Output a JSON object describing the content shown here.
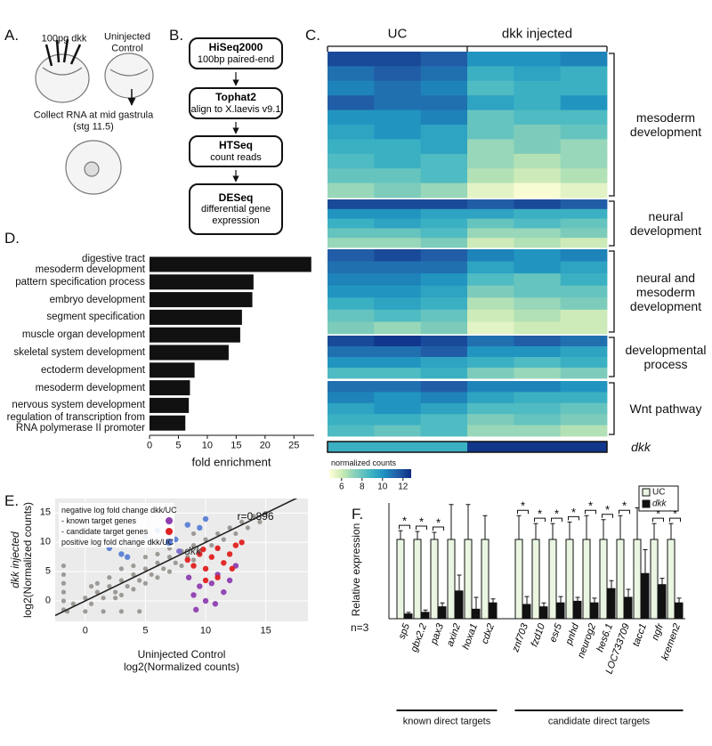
{
  "panels": {
    "A": "A.",
    "B": "B.",
    "C": "C.",
    "D": "D.",
    "E": "E.",
    "F": "F."
  },
  "panel_a": {
    "injected": "100pg dkk",
    "control": "Uninjected\nControl",
    "step": "Collect RNA at mid gastrula\n(stg 11.5)"
  },
  "panel_b": {
    "steps": [
      {
        "title": "HiSeq2000",
        "text": "100bp paired-end"
      },
      {
        "title": "Tophat2",
        "text": "align to X.laevis v9.1"
      },
      {
        "title": "HTSeq",
        "text": "count reads"
      },
      {
        "title": "DESeq",
        "text": "differential gene\nexpression"
      }
    ]
  },
  "chart_data": [
    {
      "type": "heatmap",
      "column_groups": [
        "UC",
        "dkk injected"
      ],
      "columns_per_group": 3,
      "row_groups": [
        {
          "label": "mesoderm\ndevelopment",
          "rows": [
            [
              12,
              12,
              11.5,
              10,
              10,
              10.5
            ],
            [
              11,
              11.5,
              11,
              9,
              9.5,
              9
            ],
            [
              10.5,
              11,
              10.5,
              8.5,
              9,
              9
            ],
            [
              11.5,
              11,
              11,
              9.5,
              9,
              10
            ],
            [
              10,
              10,
              10.5,
              8,
              8.5,
              8.5
            ],
            [
              9.5,
              10,
              9.5,
              8,
              7.5,
              8
            ],
            [
              9,
              9,
              9.5,
              7,
              7.5,
              7
            ],
            [
              8.5,
              9,
              8.5,
              7,
              6.5,
              7
            ],
            [
              8,
              8,
              8.5,
              6.5,
              6,
              6.5
            ],
            [
              7,
              7.5,
              7,
              5.5,
              5,
              5.5
            ]
          ]
        },
        {
          "label": "neural\ndevelopment",
          "rows": [
            [
              12,
              12,
              12,
              11.5,
              12,
              11.5
            ],
            [
              10,
              10,
              9.5,
              9.5,
              9,
              9
            ],
            [
              9,
              9.5,
              9,
              8,
              8.5,
              8
            ],
            [
              8,
              8,
              8.5,
              7,
              7,
              7.5
            ],
            [
              7,
              7,
              7.5,
              6,
              6.5,
              6
            ]
          ]
        },
        {
          "label": "neural and\nmesoderm\ndevelopment",
          "rows": [
            [
              11.5,
              12,
              11.5,
              10.5,
              10,
              10.5
            ],
            [
              11,
              11,
              11,
              9.5,
              10,
              9.5
            ],
            [
              10.5,
              10.5,
              10,
              8.5,
              8,
              9
            ],
            [
              10,
              10,
              9.5,
              7.5,
              8,
              8
            ],
            [
              9,
              9.5,
              9,
              6.5,
              7,
              7.5
            ],
            [
              8,
              8.5,
              8,
              6,
              6.5,
              6
            ],
            [
              7.5,
              7,
              7.5,
              5.5,
              6,
              6
            ]
          ]
        },
        {
          "label": "developmental\nprocess",
          "rows": [
            [
              12,
              12.5,
              12,
              11,
              11.5,
              11
            ],
            [
              11,
              11,
              11.5,
              10,
              10,
              9.5
            ],
            [
              10,
              10,
              9.5,
              9,
              8.5,
              9
            ],
            [
              8.5,
              8.5,
              9,
              7.5,
              7,
              7.5
            ]
          ]
        },
        {
          "label": "Wnt pathway",
          "rows": [
            [
              11,
              11,
              11.5,
              10.5,
              10.5,
              10
            ],
            [
              10.5,
              10,
              10.5,
              9.5,
              9,
              9
            ],
            [
              9.5,
              10,
              9.5,
              8.5,
              8.5,
              8
            ],
            [
              9,
              9,
              8.5,
              7.5,
              8,
              7.5
            ],
            [
              8.5,
              8,
              8.5,
              7,
              7,
              6.5
            ]
          ]
        },
        {
          "label": "dkk",
          "rows": [
            [
              9,
              9,
              9,
              12.5,
              12.5,
              12.5
            ]
          ]
        }
      ],
      "colorbar_title": "normalized counts",
      "zlim": [
        4.8,
        12.8
      ],
      "zticks": [
        6,
        8,
        10,
        12
      ],
      "colors": [
        "#ffffd9",
        "#c7e9b4",
        "#7fcdbb",
        "#41b6c4",
        "#1d91c0",
        "#225ea8",
        "#0c2c84"
      ]
    },
    {
      "type": "hbar",
      "categories": [
        "digestive tract\nmesoderm development",
        "pattern specification process",
        "embryo development",
        "segment specification",
        "muscle organ development",
        "skeletal system development",
        "ectoderm development",
        "mesoderm development",
        "nervous system development",
        "regulation of transcription from\nRNA polymerase II promoter"
      ],
      "values": [
        28,
        18,
        17.8,
        16,
        15.7,
        13.7,
        7.8,
        7,
        6.8,
        6.2
      ],
      "color": "#111111",
      "xlim": [
        0,
        28.5
      ],
      "xticks": [
        0,
        5,
        10,
        15,
        20,
        25
      ],
      "xlabel": "fold enrichment"
    },
    {
      "type": "scatter",
      "xlim": [
        -2.5,
        18.5
      ],
      "ylim": [
        -3.5,
        17.5
      ],
      "xticks": [
        0,
        5,
        10,
        15
      ],
      "yticks": [
        0,
        5,
        10,
        15
      ],
      "xlabel": [
        "Uninjected Control",
        "log2(Normalized counts)"
      ],
      "ylabel": [
        "dkk injected",
        "log2(Normalized counts)"
      ],
      "grid": true,
      "background": "#ebebeb",
      "annotation": "r=0.896",
      "trendline": {
        "slope": 1,
        "intercept": 0
      },
      "legend_title": "negative log fold change dkk/UC",
      "series": [
        {
          "color": "#8a8580",
          "legend": false,
          "x": [
            -1.8,
            -1.8,
            -1.8,
            -1.8,
            -1.8,
            -1.8,
            -1.5,
            0,
            1.5,
            3,
            4.5,
            -1,
            0,
            0.5,
            1,
            1.5,
            2,
            2.5,
            3,
            3.5,
            4,
            4.5,
            5,
            5.5,
            6,
            6.5,
            7,
            7.5,
            8,
            8.5,
            9,
            9.5,
            10,
            10.5,
            11,
            11.5,
            12,
            12.5,
            13,
            13.5,
            14,
            14.5,
            15,
            1,
            2,
            3,
            4,
            5,
            6,
            3,
            4,
            5,
            6,
            7,
            8,
            0.5,
            2.5,
            7,
            9,
            11,
            9
          ],
          "y": [
            -1.5,
            0,
            1.5,
            3,
            4.5,
            6,
            -1.8,
            -1.8,
            -1.8,
            -1.8,
            -1.8,
            -0.5,
            0.5,
            -0.5,
            1.5,
            0.5,
            2.5,
            1.5,
            3.5,
            2.5,
            4.5,
            3.5,
            5.5,
            4.5,
            6.5,
            5.5,
            7.5,
            6.5,
            8.5,
            7.5,
            9.5,
            8.5,
            10.5,
            9.5,
            11.5,
            10.5,
            12.5,
            11.5,
            13.5,
            12.5,
            14.5,
            13.5,
            15,
            3,
            4,
            5.5,
            6,
            7.5,
            8,
            1,
            2,
            3,
            4,
            5,
            6,
            2.5,
            0.5,
            9,
            7,
            9,
            11.5
          ]
        },
        {
          "name": "- known target genes",
          "color": "#8e3fb0",
          "legend": true,
          "x": [
            9,
            9.5,
            10,
            10.5,
            11,
            11.5,
            9.2,
            10.8,
            12,
            8.6,
            12.5
          ],
          "y": [
            1,
            2.5,
            0,
            3,
            4.5,
            1.5,
            -1.5,
            -0.5,
            3.5,
            4,
            6
          ]
        },
        {
          "name": "- candidate target genes",
          "color": "#e02020",
          "legend": true,
          "x": [
            8.5,
            9,
            9.5,
            10,
            10.5,
            11,
            11.5,
            12,
            12.5,
            13,
            11,
            10,
            9.8,
            12.2
          ],
          "y": [
            7,
            6,
            8,
            5.5,
            7.5,
            9,
            6.5,
            8,
            9.5,
            10,
            4,
            3.5,
            8.8,
            5.5
          ]
        },
        {
          "name": "positive log fold change dkk/UC",
          "color": "#5b7fd6",
          "legend": true,
          "x": [
            2,
            3,
            4,
            5,
            5.5,
            6,
            7,
            7.5,
            8.5,
            9.5,
            10,
            3.5
          ],
          "y": [
            9,
            8,
            10.5,
            11,
            10,
            12,
            11.5,
            10.5,
            13,
            12.5,
            14,
            7.5
          ]
        },
        {
          "name": "dkk",
          "color": "#7a6ccc",
          "legend": false,
          "x": [
            7.8
          ],
          "y": [
            8.5
          ]
        }
      ]
    },
    {
      "type": "bar",
      "categories": [
        "sp5",
        "gbx2.2",
        "pax3",
        "axin2",
        "hoxa1",
        "cdx2",
        "znf703",
        "fzd10",
        "esr5",
        "pnhd",
        "neurog2",
        "hes6.1",
        "LOC733709",
        "tacc1",
        "ngfr",
        "kremen2"
      ],
      "group_labels": [
        "known direct targets",
        "candidate direct targets"
      ],
      "group_sizes": [
        6,
        10
      ],
      "ylim": [
        0,
        1.46
      ],
      "ylabel": "Relative expression",
      "n_label": "n=3",
      "significance_label": "*",
      "significant": [
        true,
        true,
        true,
        false,
        false,
        false,
        true,
        true,
        true,
        true,
        true,
        true,
        true,
        false,
        true,
        true
      ],
      "series": [
        {
          "name": "UC",
          "color": "#eaf6e2",
          "values": [
            1,
            1,
            1,
            1,
            1,
            1,
            1,
            1,
            1,
            1,
            1,
            1,
            1,
            1,
            1,
            1
          ],
          "errors": [
            0.11,
            0.1,
            0.09,
            0.44,
            0.44,
            0.3,
            0.3,
            0.2,
            0.2,
            0.22,
            0.3,
            0.25,
            0.3,
            0.4,
            0.2,
            0.2
          ]
        },
        {
          "name": "dkk",
          "color": "#111111",
          "values": [
            0.06,
            0.08,
            0.15,
            0.35,
            0.12,
            0.2,
            0.18,
            0.15,
            0.2,
            0.22,
            0.2,
            0.38,
            0.27,
            0.57,
            0.43,
            0.2
          ],
          "errors": [
            0.02,
            0.03,
            0.05,
            0.2,
            0.15,
            0.05,
            0.1,
            0.05,
            0.08,
            0.05,
            0.06,
            0.1,
            0.1,
            0.3,
            0.08,
            0.06
          ]
        }
      ]
    }
  ]
}
